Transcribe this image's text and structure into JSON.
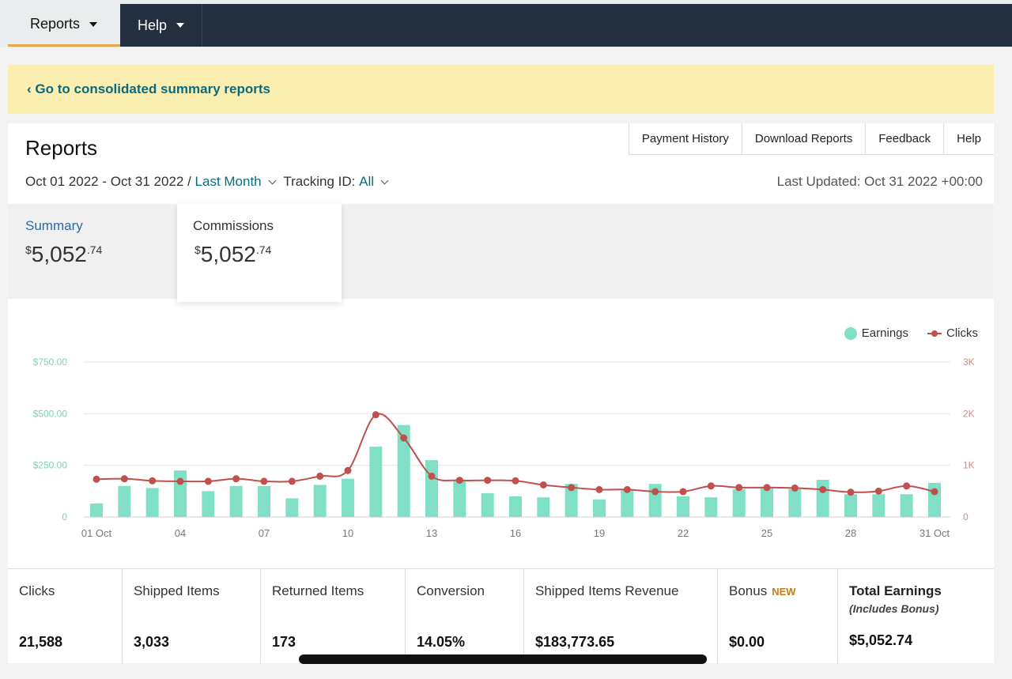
{
  "nav": {
    "reports": "Reports",
    "help": "Help"
  },
  "banner": {
    "link": "‹ Go to consolidated summary reports"
  },
  "header": {
    "title": "Reports",
    "tabs": [
      "Payment History",
      "Download Reports",
      "Feedback",
      "Help"
    ],
    "date_range": "Oct 01 2022 - Oct 31 2022 /",
    "period": "Last Month",
    "tracking_label": "Tracking ID:",
    "tracking_value": "All",
    "last_updated": "Last Updated: Oct 31 2022 +00:00"
  },
  "cards": {
    "summary": {
      "label": "Summary",
      "dollar": "$",
      "whole": "5,052",
      "cents": ".74"
    },
    "commissions": {
      "label": "Commissions",
      "dollar": "$",
      "whole": "5,052",
      "cents": ".74"
    }
  },
  "chart_data": {
    "type": "bar+line",
    "legend": [
      "Earnings",
      "Clicks"
    ],
    "legend_position": "top-right",
    "x": [
      "01",
      "02",
      "03",
      "04",
      "05",
      "06",
      "07",
      "08",
      "09",
      "10",
      "11",
      "12",
      "13",
      "14",
      "15",
      "16",
      "17",
      "18",
      "19",
      "20",
      "21",
      "22",
      "23",
      "24",
      "25",
      "26",
      "27",
      "28",
      "29",
      "30",
      "31"
    ],
    "x_tick_labels": [
      "01 Oct",
      "04",
      "07",
      "10",
      "13",
      "16",
      "19",
      "22",
      "25",
      "28",
      "31 Oct"
    ],
    "left_axis": {
      "ticks": [
        "0",
        "$250.00",
        "$500.00",
        "$750.00"
      ],
      "ylim": [
        0,
        750
      ]
    },
    "right_axis": {
      "ticks": [
        "0",
        "1K",
        "2K",
        "3K"
      ],
      "ylim": [
        0,
        3000
      ]
    },
    "series": [
      {
        "name": "Earnings",
        "type": "bar",
        "color": "#7fe0c5",
        "values": [
          65,
          150,
          140,
          225,
          125,
          150,
          150,
          90,
          155,
          185,
          340,
          445,
          275,
          175,
          115,
          100,
          95,
          160,
          85,
          135,
          160,
          100,
          95,
          135,
          140,
          135,
          180,
          110,
          110,
          110,
          165
        ]
      },
      {
        "name": "Clicks",
        "type": "line",
        "color": "#c0504d",
        "values": [
          730,
          740,
          700,
          690,
          690,
          740,
          690,
          690,
          790,
          900,
          1980,
          1530,
          790,
          710,
          710,
          700,
          620,
          570,
          530,
          530,
          490,
          490,
          600,
          570,
          570,
          560,
          530,
          480,
          500,
          600,
          490
        ]
      }
    ],
    "grid": true
  },
  "stats": [
    {
      "label": "Clicks",
      "value": "21,588"
    },
    {
      "label": "Shipped Items",
      "value": "3,033"
    },
    {
      "label": "Returned Items",
      "value": "173"
    },
    {
      "label": "Conversion",
      "value": "14.05%"
    },
    {
      "label": "Shipped Items Revenue",
      "value": "$183,773.65"
    },
    {
      "label": "Bonus",
      "badge": "NEW",
      "value": "$0.00"
    },
    {
      "label": "Total Earnings",
      "sub": "(Includes Bonus)",
      "value": "$5,052.74"
    }
  ]
}
